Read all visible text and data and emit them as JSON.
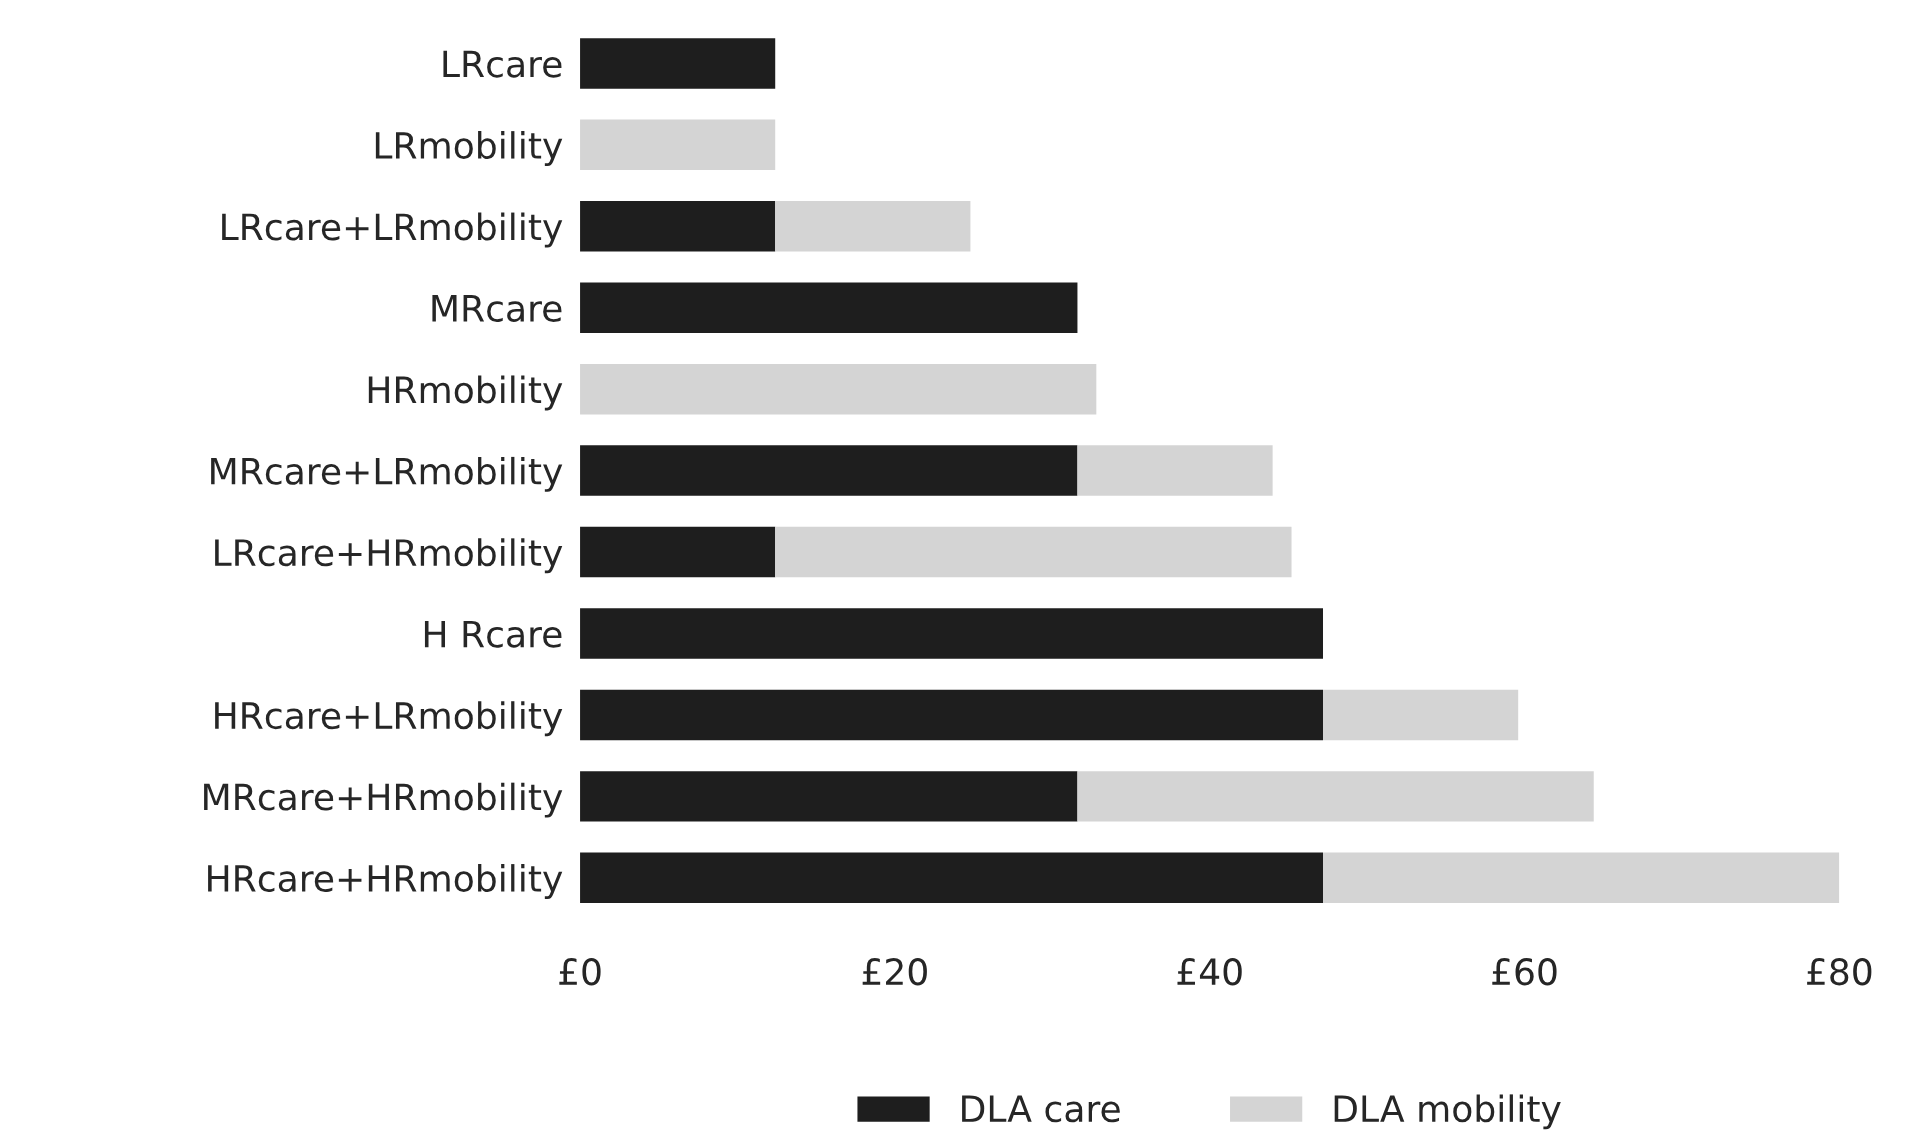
{
  "chart_data": {
    "type": "bar",
    "orientation": "horizontal",
    "stacked": true,
    "categories": [
      "LRcare",
      "LRmobility",
      "LRcare+LRmobility",
      "MRcare",
      "HRmobility",
      "MRcare+LRmobility",
      "LRcare+HRmobility",
      "H Rcare",
      "HRcare+LRmobility",
      "MRcare+HRmobility",
      "HRcare+HRmobility"
    ],
    "series": [
      {
        "name": "DLA care",
        "color": "#1e1e1e",
        "values": [
          12.4,
          0,
          12.4,
          31.6,
          0,
          31.6,
          12.4,
          47.2,
          47.2,
          31.6,
          47.2
        ]
      },
      {
        "name": "DLA mobility",
        "color": "#d4d4d4",
        "values": [
          0,
          12.4,
          12.4,
          0,
          32.8,
          12.4,
          32.8,
          0,
          12.4,
          32.8,
          32.8
        ]
      }
    ],
    "xlim": [
      0,
      80
    ],
    "xticks": [
      {
        "value": 0,
        "label": "£0"
      },
      {
        "value": 20,
        "label": "£20"
      },
      {
        "value": 40,
        "label": "£40"
      },
      {
        "value": 60,
        "label": "£60"
      },
      {
        "value": 80,
        "label": "£80"
      }
    ],
    "grid": false,
    "legend": "bottom"
  }
}
